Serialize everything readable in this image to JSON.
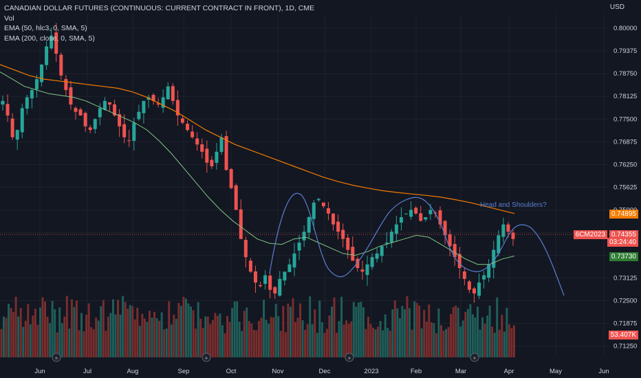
{
  "header": {
    "title": "CANADIAN DOLLAR FUTURES (CONTINUOUS: CURRENT CONTRACT IN FRONT), 1D, CME",
    "vol_label": "Vol",
    "ema50_label": "EMA (50, hlc3, 0, SMA, 5)",
    "ema200_label": "EMA (200, close, 0, SMA, 5)"
  },
  "axis": {
    "currency": "USD",
    "y_ticks": [
      "0.80000",
      "0.79375",
      "0.78750",
      "0.78125",
      "0.77500",
      "0.76875",
      "0.76250",
      "0.75625",
      "0.75000",
      "0.74375",
      "0.73750",
      "0.73125",
      "0.72500",
      "0.71875",
      "0.71250"
    ],
    "x_ticks": [
      "Jun",
      "Jul",
      "Aug",
      "Sep",
      "Oct",
      "Nov",
      "Dec",
      "2023",
      "Feb",
      "Mar",
      "Apr",
      "May",
      "Jun"
    ]
  },
  "annotations": {
    "pattern_label": "Head and Shoulders?"
  },
  "price_tags": {
    "ema200_value": "0.74895",
    "symbol": "6CM2023",
    "last_price": "0.74355",
    "countdown": "03:24:40",
    "ema50_value": "0.73730",
    "volume_value": "53.407K"
  },
  "colors": {
    "background": "#131722",
    "up": "#26a69a",
    "down": "#ef5350",
    "ema50": "#81c784",
    "ema200": "#f57c00",
    "drawing": "#5b7fd1"
  },
  "chart_data": {
    "type": "candlestick",
    "y_range": [
      0.7094,
      0.804
    ],
    "close_series_approx": [
      0.78,
      0.776,
      0.77,
      0.772,
      0.778,
      0.781,
      0.783,
      0.786,
      0.79,
      0.795,
      0.798,
      0.793,
      0.787,
      0.783,
      0.779,
      0.777,
      0.776,
      0.773,
      0.772,
      0.775,
      0.778,
      0.78,
      0.779,
      0.776,
      0.773,
      0.77,
      0.769,
      0.774,
      0.777,
      0.78,
      0.781,
      0.78,
      0.779,
      0.781,
      0.784,
      0.78,
      0.776,
      0.774,
      0.772,
      0.77,
      0.768,
      0.766,
      0.763,
      0.762,
      0.766,
      0.77,
      0.761,
      0.756,
      0.75,
      0.742,
      0.737,
      0.733,
      0.73,
      0.729,
      0.732,
      0.728,
      0.727,
      0.731,
      0.733,
      0.735,
      0.738,
      0.741,
      0.744,
      0.748,
      0.752,
      0.753,
      0.751,
      0.749,
      0.746,
      0.744,
      0.742,
      0.739,
      0.736,
      0.734,
      0.733,
      0.735,
      0.737,
      0.738,
      0.74,
      0.741,
      0.744,
      0.746,
      0.748,
      0.749,
      0.75,
      0.749,
      0.747,
      0.748,
      0.75,
      0.749,
      0.746,
      0.743,
      0.74,
      0.737,
      0.734,
      0.731,
      0.728,
      0.727,
      0.73,
      0.732,
      0.735,
      0.739,
      0.743,
      0.746,
      0.744,
      0.742
    ],
    "ema50_approx": [
      0.788,
      0.786,
      0.784,
      0.783,
      0.782,
      0.7815,
      0.781,
      0.78,
      0.7785,
      0.777,
      0.7755,
      0.774,
      0.772,
      0.769,
      0.7655,
      0.7615,
      0.7575,
      0.7535,
      0.75,
      0.747,
      0.7445,
      0.742,
      0.7408,
      0.7405,
      0.742,
      0.7425,
      0.741,
      0.7395,
      0.738,
      0.7375,
      0.7385,
      0.74,
      0.741,
      0.742,
      0.743,
      0.7425,
      0.7405,
      0.7385,
      0.7365,
      0.735,
      0.735,
      0.7365,
      0.7373
    ],
    "ema200_approx": [
      0.79,
      0.7885,
      0.787,
      0.786,
      0.7855,
      0.785,
      0.7845,
      0.784,
      0.7835,
      0.7825,
      0.781,
      0.779,
      0.777,
      0.7745,
      0.772,
      0.77,
      0.768,
      0.7665,
      0.765,
      0.7635,
      0.762,
      0.7605,
      0.759,
      0.7578,
      0.7568,
      0.756,
      0.7553,
      0.7548,
      0.7544,
      0.754,
      0.7535,
      0.7528,
      0.752,
      0.751,
      0.75,
      0.749
    ],
    "last_price": 0.74355,
    "ema50_last": 0.7373,
    "ema200_last": 0.74895,
    "volume_last_k": 53.407
  }
}
